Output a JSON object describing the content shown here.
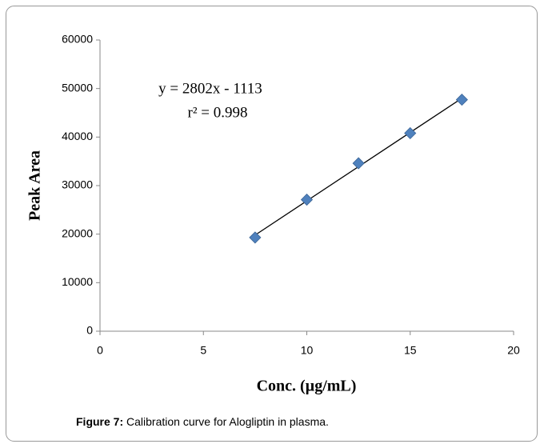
{
  "chart_data": {
    "type": "scatter",
    "y_label": "Peak Area",
    "x_label": "Conc. (µg/mL)",
    "annotations": [
      "y = 2802x - 1113",
      "r² = 0.998"
    ],
    "caption_label": "Figure 7:",
    "caption_text": " Calibration curve for Alogliptin in plasma.",
    "x": [
      7.5,
      10,
      12.5,
      15,
      17.5
    ],
    "values": [
      19300,
      27100,
      34600,
      40800,
      47700
    ],
    "color": "#4f81bd",
    "trendline": true,
    "xlim": [
      0,
      20
    ],
    "xticks": [
      0,
      5,
      10,
      15,
      20
    ],
    "ylim": [
      0,
      60000
    ],
    "yticks": [
      0,
      10000,
      20000,
      30000,
      40000,
      50000,
      60000
    ],
    "grid": false
  }
}
